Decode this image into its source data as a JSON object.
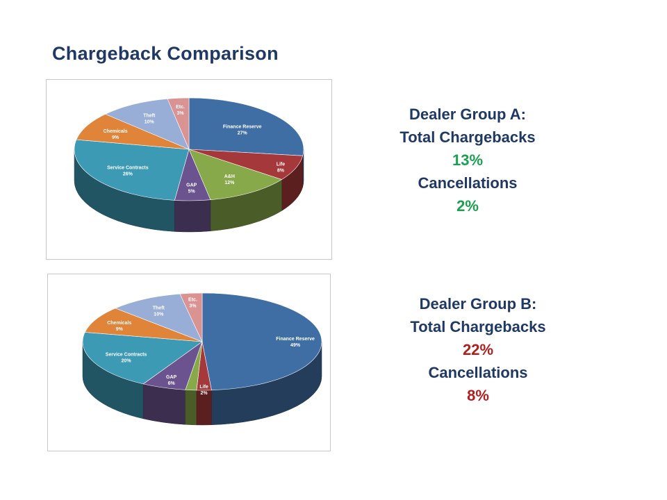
{
  "slide": {
    "title": "Chargeback Comparison"
  },
  "groups": [
    {
      "heading": "Dealer Group A:",
      "chargebacks_label": "Total Chargebacks",
      "chargebacks_value": "13%",
      "cancellations_label": "Cancellations",
      "cancellations_value": "2%"
    },
    {
      "heading": "Dealer Group B:",
      "chargebacks_label": "Total Chargebacks",
      "chargebacks_value": "22%",
      "cancellations_label": "Cancellations",
      "cancellations_value": "8%"
    }
  ],
  "colors": {
    "Finance Reserve": "#3f6ea5",
    "Life": "#a5383a",
    "A&H": "#87a94a",
    "GAP": "#6b5390",
    "Service Contracts": "#3d9ab5",
    "Chemicals": "#e0843a",
    "Theft": "#98aed6",
    "Etc.": "#d99393",
    "good": "#1aa050",
    "bad": "#b01e1e"
  },
  "chart_data": [
    {
      "type": "pie",
      "title": "",
      "categories": [
        "Finance Reserve",
        "Life",
        "A&H",
        "GAP",
        "Service Contracts",
        "Chemicals",
        "Theft",
        "Etc."
      ],
      "values": [
        27,
        8,
        12,
        5,
        26,
        9,
        10,
        3
      ],
      "labels": [
        "27%",
        "8%",
        "12%",
        "5%",
        "26%",
        "9%",
        "10%",
        "3%"
      ],
      "style": "3d"
    },
    {
      "type": "pie",
      "title": "",
      "categories": [
        "Finance Reserve",
        "Life",
        "A&H",
        "GAP",
        "Service Contracts",
        "Chemicals",
        "Theft",
        "Etc."
      ],
      "values": [
        49,
        2,
        1.5,
        6,
        20,
        9,
        10,
        3
      ],
      "labels": [
        "49%",
        "2%",
        "",
        "6%",
        "20%",
        "9%",
        "10%",
        "3%"
      ],
      "style": "3d"
    }
  ]
}
